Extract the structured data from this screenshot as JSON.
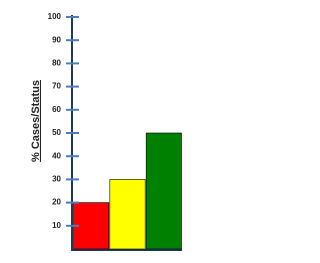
{
  "chart_data": {
    "type": "bar",
    "y_label": "% Cases/Status",
    "categories": [
      null,
      null,
      null
    ],
    "values": [
      20,
      30,
      50
    ],
    "colors": [
      "#ff0000",
      "#ffff00",
      "#008000"
    ],
    "ylim": [
      0,
      100
    ],
    "yticks": [
      10,
      20,
      30,
      40,
      50,
      60,
      70,
      80,
      90,
      100
    ]
  }
}
